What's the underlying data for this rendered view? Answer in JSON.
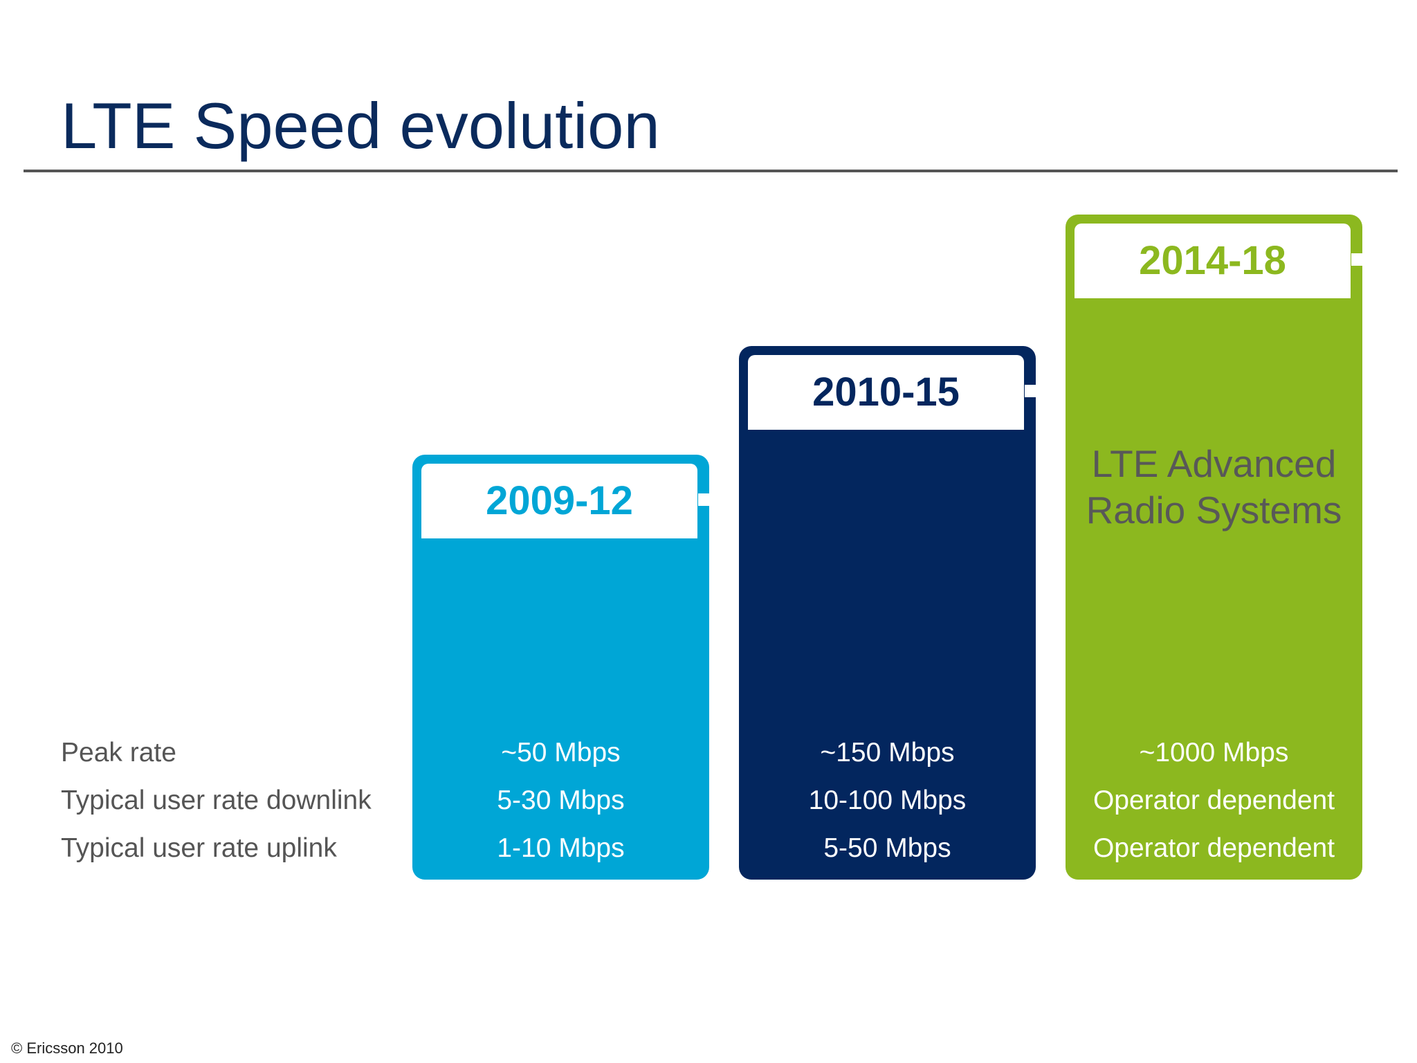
{
  "slide": {
    "title": "LTE Speed evolution",
    "footer": "© Ericsson 2010"
  },
  "rows": {
    "peak": "Peak rate",
    "downlink": "Typical user rate downlink",
    "uplink": "Typical user rate uplink"
  },
  "cards": [
    {
      "period": "2009-12",
      "color": "#00a6d6",
      "description": "",
      "peak": "~50 Mbps",
      "downlink": "5-30 Mbps",
      "uplink": "1-10 Mbps"
    },
    {
      "period": "2010-15",
      "color": "#03265e",
      "description": "",
      "peak": "~150 Mbps",
      "downlink": "10-100 Mbps",
      "uplink": "5-50 Mbps"
    },
    {
      "period": "2014-18",
      "color": "#8cb81f",
      "description_line1": "LTE Advanced",
      "description_line2": "Radio Systems",
      "peak": "~1000 Mbps",
      "downlink": "Operator dependent",
      "uplink": "Operator dependent"
    }
  ]
}
